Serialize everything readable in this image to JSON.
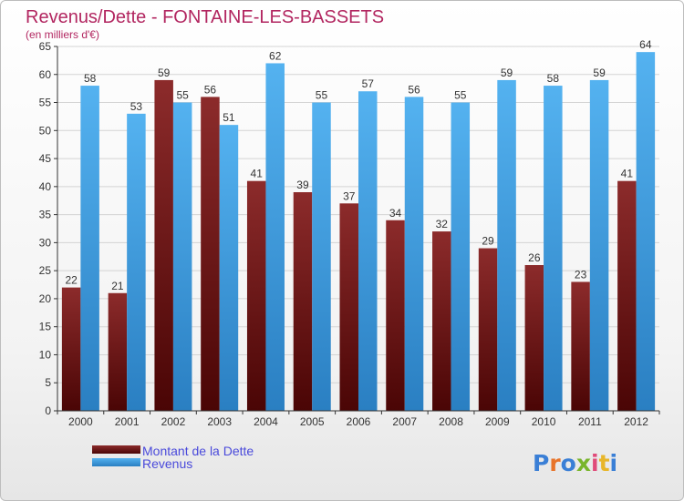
{
  "chart_data": {
    "type": "bar",
    "title": "Revenus/Dette - FONTAINE-LES-BASSETS",
    "subtitle": "(en milliers d'€)",
    "categories": [
      "2000",
      "2001",
      "2002",
      "2003",
      "2004",
      "2005",
      "2006",
      "2007",
      "2008",
      "2009",
      "2010",
      "2011",
      "2012"
    ],
    "series": [
      {
        "name": "Montant de la Dette",
        "color": "#7a1212",
        "values": [
          22,
          21,
          59,
          56,
          41,
          39,
          37,
          34,
          32,
          29,
          26,
          23,
          41
        ]
      },
      {
        "name": "Revenus",
        "color": "#3a9be0",
        "values": [
          58,
          53,
          55,
          51,
          62,
          55,
          57,
          56,
          55,
          59,
          58,
          59,
          64
        ]
      }
    ],
    "ylim": [
      0,
      65
    ],
    "yticks": [
      0,
      5,
      10,
      15,
      20,
      25,
      30,
      35,
      40,
      45,
      50,
      55,
      60,
      65
    ],
    "grid": true,
    "legend_position": "bottom-left"
  },
  "logo": {
    "text": "Proxiti",
    "letter_colors": [
      "#3a7fd6",
      "#e8742a",
      "#3a7fd6",
      "#79b52c",
      "#e04a7a",
      "#e8b62a",
      "#3a7fd6"
    ]
  }
}
